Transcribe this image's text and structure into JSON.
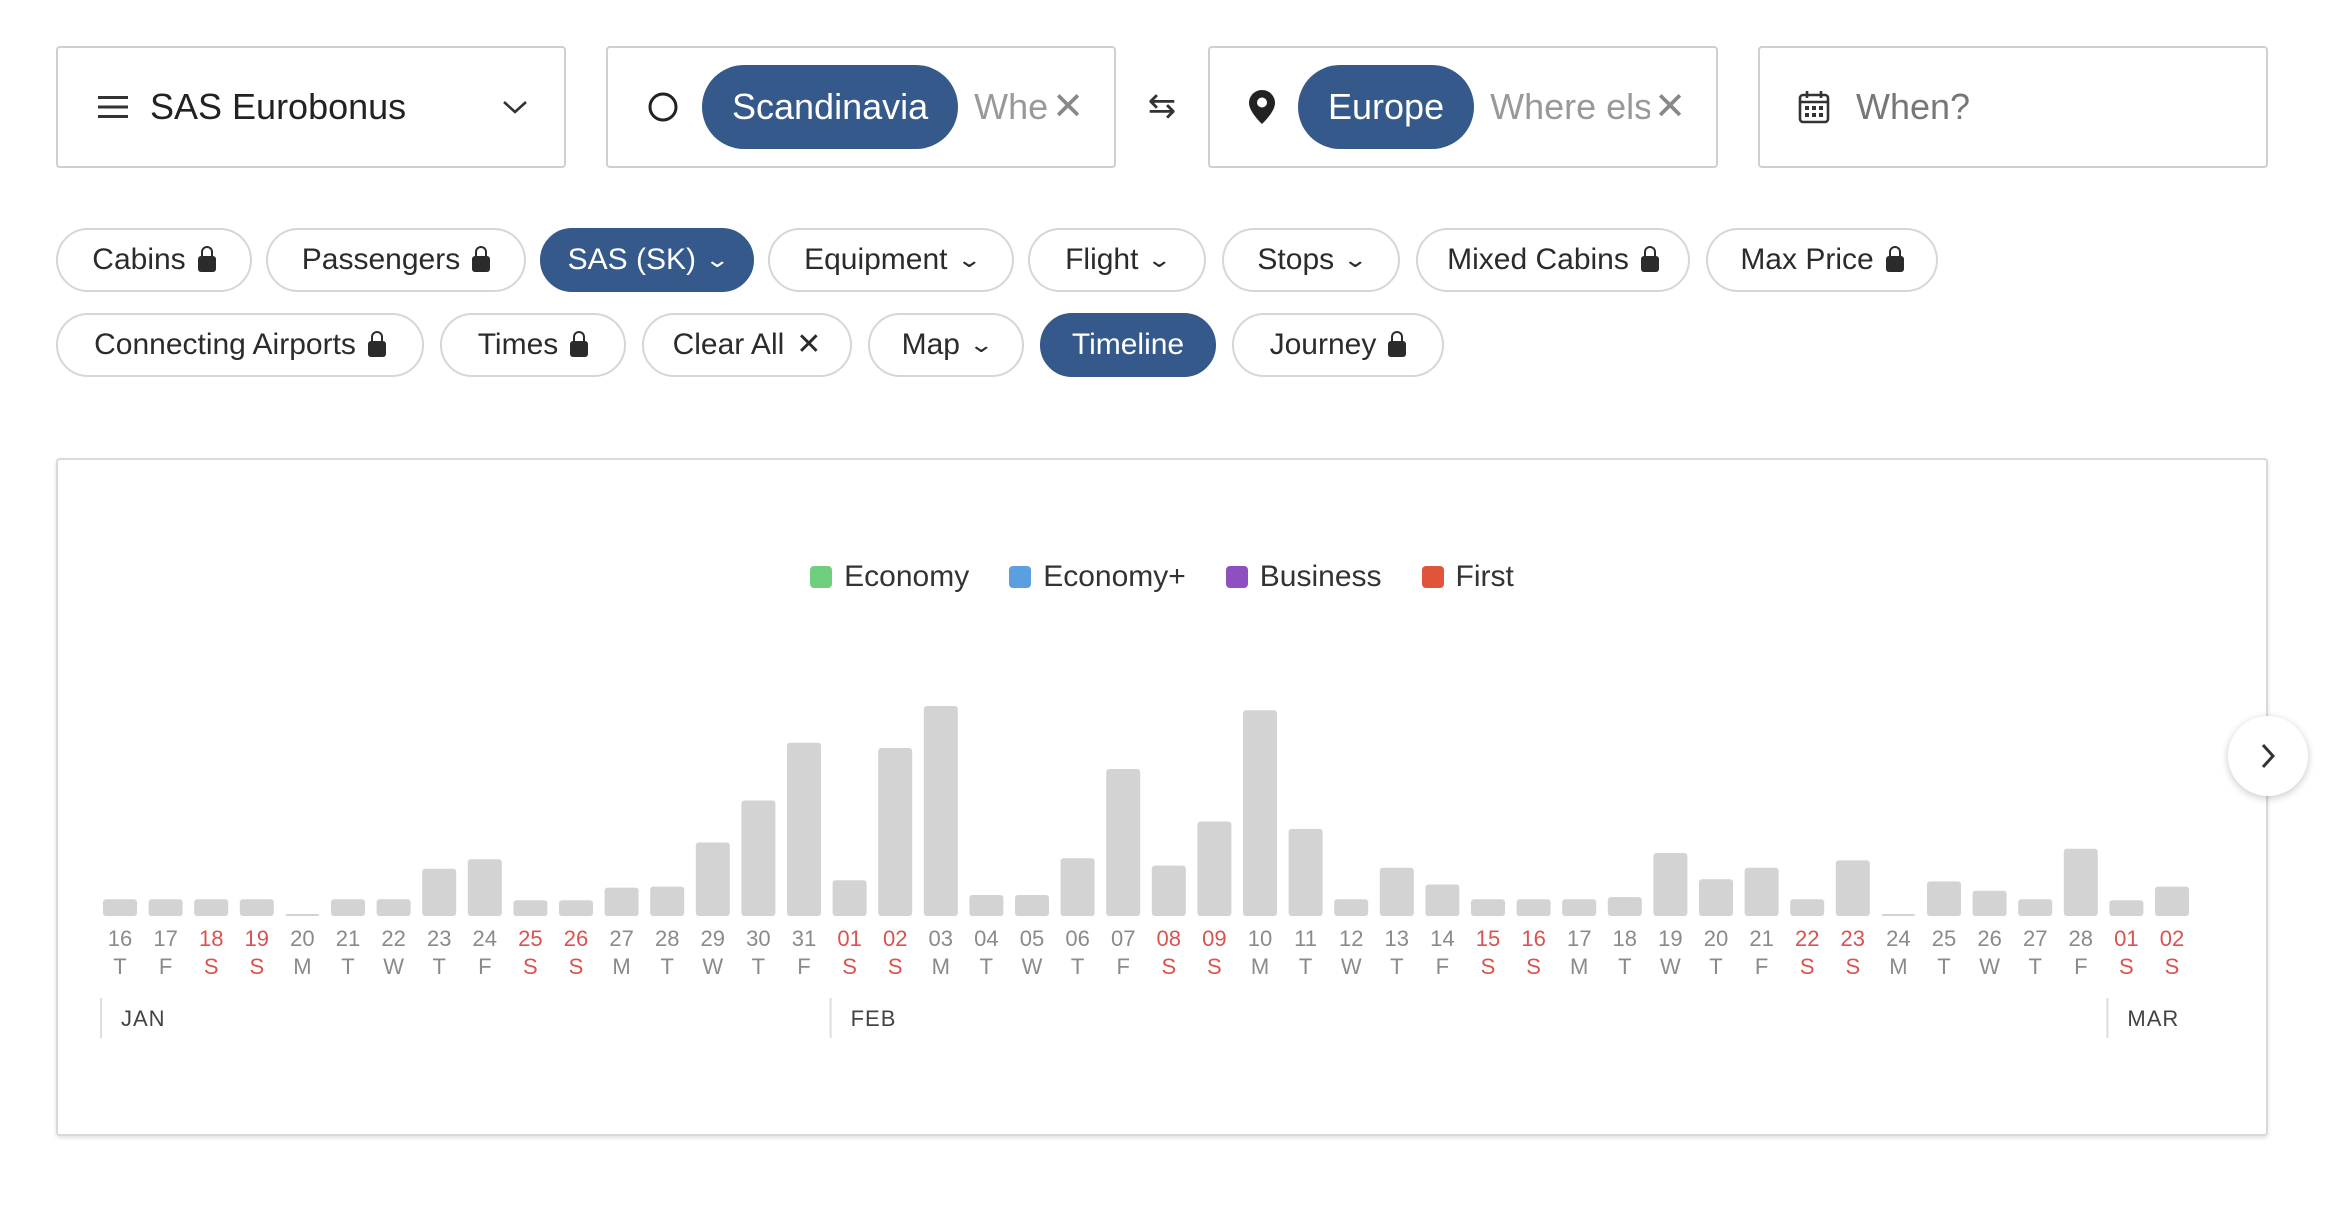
{
  "search": {
    "program": {
      "label": "SAS Eurobonus",
      "icon": "menu-icon"
    },
    "origin": {
      "chip": "Scandinavia",
      "placeholder": "Where",
      "icon": "circle-icon"
    },
    "destination": {
      "chip": "Europe",
      "placeholder": "Where else",
      "icon": "map-pin-icon"
    },
    "when": {
      "placeholder": "When?",
      "icon": "calendar-icon"
    },
    "swap_icon": "swap-icon"
  },
  "filters": [
    {
      "label": "Cabins",
      "icon": "lock"
    },
    {
      "label": "Passengers",
      "icon": "lock"
    },
    {
      "label": "SAS (SK)",
      "icon": "chevron",
      "active": true
    },
    {
      "label": "Equipment",
      "icon": "chevron"
    },
    {
      "label": "Flight",
      "icon": "chevron"
    },
    {
      "label": "Stops",
      "icon": "chevron"
    },
    {
      "label": "Mixed Cabins",
      "icon": "lock"
    },
    {
      "label": "Max Price",
      "icon": "lock"
    },
    {
      "label": "Connecting Airports",
      "icon": "lock"
    },
    {
      "label": "Times",
      "icon": "lock"
    },
    {
      "label": "Clear All",
      "icon": "x"
    },
    {
      "label": "Map",
      "icon": "chevron"
    },
    {
      "label": "Timeline",
      "icon": "",
      "active": true
    },
    {
      "label": "Journey",
      "icon": "lock"
    }
  ],
  "legend": [
    {
      "label": "Economy",
      "color": "#6fcf7e"
    },
    {
      "label": "Economy+",
      "color": "#5a9fe0"
    },
    {
      "label": "Business",
      "color": "#8e4fc0"
    },
    {
      "label": "First",
      "color": "#e0553a"
    }
  ],
  "chart_data": {
    "type": "bar",
    "bar_color": "#d3d3d3",
    "weekend_label_color": "#d9534f",
    "categories": [
      {
        "d": "16",
        "w": "T"
      },
      {
        "d": "17",
        "w": "F"
      },
      {
        "d": "18",
        "w": "S"
      },
      {
        "d": "19",
        "w": "S"
      },
      {
        "d": "20",
        "w": "M"
      },
      {
        "d": "21",
        "w": "T"
      },
      {
        "d": "22",
        "w": "W"
      },
      {
        "d": "23",
        "w": "T"
      },
      {
        "d": "24",
        "w": "F"
      },
      {
        "d": "25",
        "w": "S"
      },
      {
        "d": "26",
        "w": "S"
      },
      {
        "d": "27",
        "w": "M"
      },
      {
        "d": "28",
        "w": "T"
      },
      {
        "d": "29",
        "w": "W"
      },
      {
        "d": "30",
        "w": "T"
      },
      {
        "d": "31",
        "w": "F"
      },
      {
        "d": "01",
        "w": "S"
      },
      {
        "d": "02",
        "w": "S"
      },
      {
        "d": "03",
        "w": "M"
      },
      {
        "d": "04",
        "w": "T"
      },
      {
        "d": "05",
        "w": "W"
      },
      {
        "d": "06",
        "w": "T"
      },
      {
        "d": "07",
        "w": "F"
      },
      {
        "d": "08",
        "w": "S"
      },
      {
        "d": "09",
        "w": "S"
      },
      {
        "d": "10",
        "w": "M"
      },
      {
        "d": "11",
        "w": "T"
      },
      {
        "d": "12",
        "w": "W"
      },
      {
        "d": "13",
        "w": "T"
      },
      {
        "d": "14",
        "w": "F"
      },
      {
        "d": "15",
        "w": "S"
      },
      {
        "d": "16",
        "w": "S"
      },
      {
        "d": "17",
        "w": "M"
      },
      {
        "d": "18",
        "w": "T"
      },
      {
        "d": "19",
        "w": "W"
      },
      {
        "d": "20",
        "w": "T"
      },
      {
        "d": "21",
        "w": "F"
      },
      {
        "d": "22",
        "w": "S"
      },
      {
        "d": "23",
        "w": "S"
      },
      {
        "d": "24",
        "w": "M"
      },
      {
        "d": "25",
        "w": "T"
      },
      {
        "d": "26",
        "w": "W"
      },
      {
        "d": "27",
        "w": "T"
      },
      {
        "d": "28",
        "w": "F"
      },
      {
        "d": "01",
        "w": "S"
      },
      {
        "d": "02",
        "w": "S"
      }
    ],
    "values": [
      16,
      16,
      16,
      16,
      1,
      16,
      16,
      45,
      54,
      15,
      15,
      27,
      28,
      70,
      110,
      165,
      34,
      160,
      200,
      20,
      20,
      55,
      140,
      48,
      90,
      196,
      83,
      16,
      46,
      30,
      16,
      16,
      16,
      18,
      60,
      35,
      46,
      16,
      53,
      1,
      33,
      24,
      16,
      64,
      15,
      28
    ],
    "months": [
      {
        "label": "JAN",
        "start_index": 0
      },
      {
        "label": "FEB",
        "start_index": 16
      },
      {
        "label": "MAR",
        "start_index": 44
      }
    ],
    "xlabel": "",
    "ylabel": "",
    "grid": false,
    "legend_position": "top-center"
  }
}
